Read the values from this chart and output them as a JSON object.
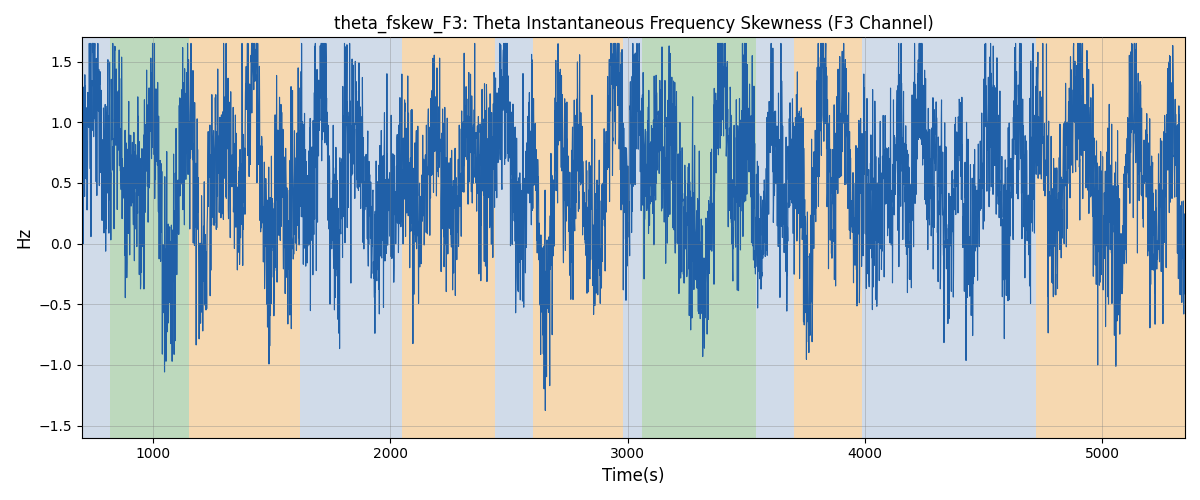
{
  "title": "theta_fskew_F3: Theta Instantaneous Frequency Skewness (F3 Channel)",
  "xlabel": "Time(s)",
  "ylabel": "Hz",
  "xlim": [
    700,
    5350
  ],
  "ylim": [
    -1.6,
    1.7
  ],
  "yticks": [
    -1.5,
    -1.0,
    -0.5,
    0.0,
    0.5,
    1.0,
    1.5
  ],
  "xticks": [
    1000,
    2000,
    3000,
    4000,
    5000
  ],
  "line_color": "#2060a8",
  "line_width": 0.8,
  "background_bands": [
    {
      "xmin": 700,
      "xmax": 820,
      "color": "#aabfd8",
      "alpha": 0.55
    },
    {
      "xmin": 820,
      "xmax": 1150,
      "color": "#88bb88",
      "alpha": 0.55
    },
    {
      "xmin": 1150,
      "xmax": 1620,
      "color": "#f0b870",
      "alpha": 0.55
    },
    {
      "xmin": 1620,
      "xmax": 2050,
      "color": "#aabfd8",
      "alpha": 0.55
    },
    {
      "xmin": 2050,
      "xmax": 2440,
      "color": "#f0b870",
      "alpha": 0.55
    },
    {
      "xmin": 2440,
      "xmax": 2600,
      "color": "#aabfd8",
      "alpha": 0.55
    },
    {
      "xmin": 2600,
      "xmax": 2980,
      "color": "#f0b870",
      "alpha": 0.55
    },
    {
      "xmin": 2980,
      "xmax": 3060,
      "color": "#aabfd8",
      "alpha": 0.55
    },
    {
      "xmin": 3060,
      "xmax": 3540,
      "color": "#88bb88",
      "alpha": 0.55
    },
    {
      "xmin": 3540,
      "xmax": 3700,
      "color": "#aabfd8",
      "alpha": 0.55
    },
    {
      "xmin": 3700,
      "xmax": 3990,
      "color": "#f0b870",
      "alpha": 0.55
    },
    {
      "xmin": 3990,
      "xmax": 4120,
      "color": "#aabfd8",
      "alpha": 0.55
    },
    {
      "xmin": 4120,
      "xmax": 4720,
      "color": "#aabfd8",
      "alpha": 0.55
    },
    {
      "xmin": 4720,
      "xmax": 5350,
      "color": "#f0b870",
      "alpha": 0.55
    }
  ],
  "seed": 37,
  "n_points": 4500,
  "x_start": 700,
  "x_end": 5350,
  "figsize": [
    12,
    5
  ],
  "dpi": 100,
  "noise_std": 0.38,
  "base_mean": 0.55,
  "high_freq_amp": 0.55,
  "high_freq_count": 80,
  "mid_freq_amp": 0.25,
  "mid_freq_count": 35
}
